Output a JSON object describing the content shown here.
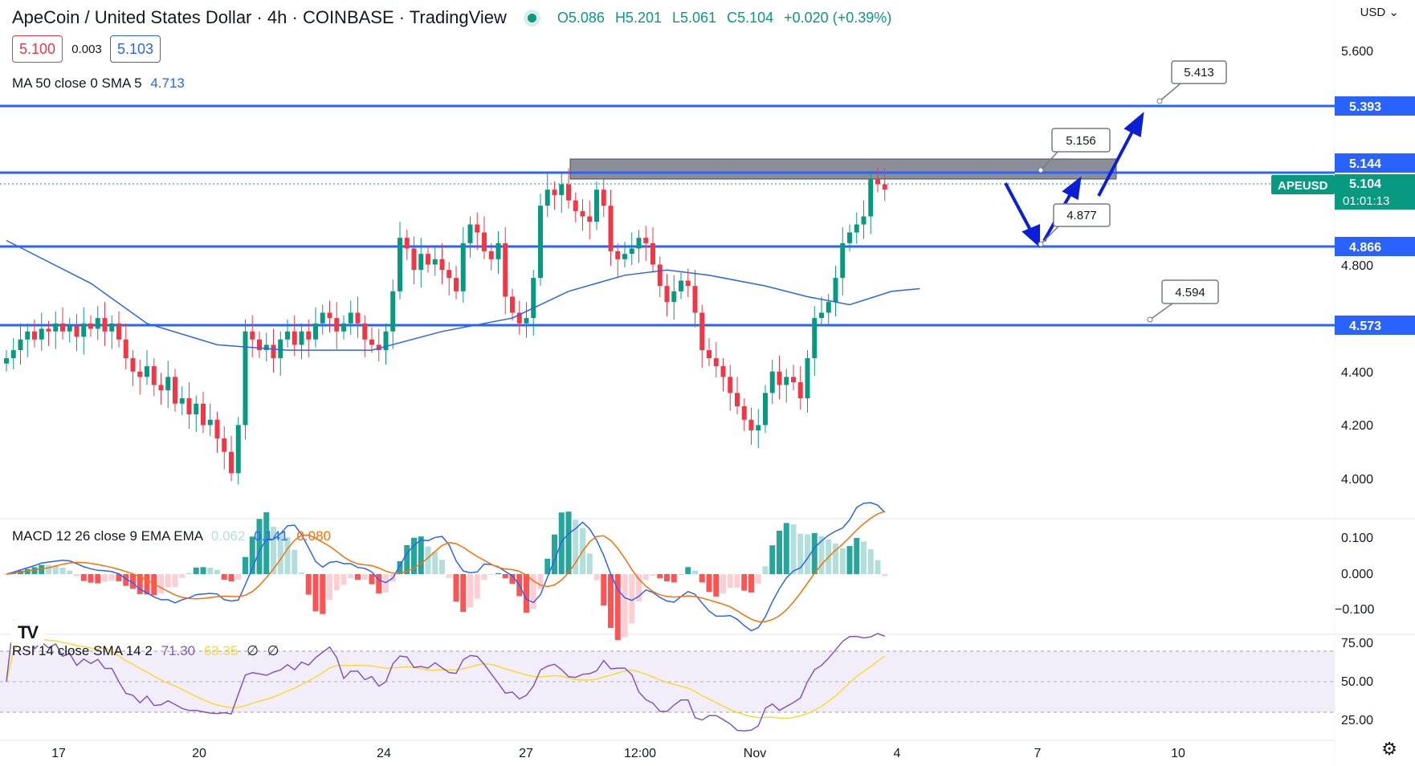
{
  "header": {
    "title": "ApeCoin / United States Dollar · 4h · COINBASE · TradingView",
    "ohlc": {
      "open": "O5.086",
      "high": "H5.201",
      "low": "L5.061",
      "close": "C5.104",
      "change": "+0.020 (+0.39%)"
    }
  },
  "trade": {
    "sell": "5.100",
    "spread": "0.003",
    "buy": "5.103"
  },
  "indicators": {
    "ma": {
      "label": "MA 50 close 0 SMA 5",
      "value": "4.713"
    },
    "macd": {
      "label": "MACD 12 26 close 9 EMA EMA",
      "hist": "0.062",
      "macd": "0.141",
      "signal": "0.080"
    },
    "rsi": {
      "label": "RSI 14 close SMA 14 2",
      "rsi": "71.30",
      "sma": "63.35",
      "extra1": "∅",
      "extra2": "∅"
    }
  },
  "currency": "USD",
  "time_axis": [
    "17",
    "20",
    "24",
    "27",
    "12:00",
    "Nov",
    "4",
    "7",
    "10"
  ],
  "price_axis": [
    "5.600",
    "4.800",
    "4.400",
    "4.200",
    "4.000"
  ],
  "macd_axis": [
    "0.100",
    "0.000",
    "−0.100"
  ],
  "rsi_axis": [
    "75.00",
    "50.00",
    "25.00"
  ],
  "price_badges": [
    {
      "text": "5.393",
      "value": 5.393,
      "color": "#2962ff"
    },
    {
      "text": "5.144",
      "value": 5.144,
      "color": "#2962ff"
    },
    {
      "text": "4.866",
      "value": 4.866,
      "color": "#2962ff"
    },
    {
      "text": "4.573",
      "value": 4.573,
      "color": "#2962ff"
    }
  ],
  "symbol_badge": {
    "symbol": "APEUSD",
    "price": "5.104",
    "countdown": "01:01:13",
    "color": "#089981"
  },
  "annotations": [
    {
      "text": "5.413"
    },
    {
      "text": "5.156"
    },
    {
      "text": "4.877"
    },
    {
      "text": "4.594"
    }
  ],
  "colors": {
    "up": "#089981",
    "down": "#f23645",
    "levels": "#2962ff",
    "ma": "#2962ff",
    "signal": "#ff6d00",
    "rsi": "#7e57c2",
    "rsi_sma": "#fdd835",
    "arrows": "#0d1fd6"
  },
  "chart_data": {
    "type": "candlestick",
    "symbol": "APEUSD",
    "timeframe": "4h",
    "horizontal_levels": [
      5.393,
      5.144,
      4.866,
      4.573
    ],
    "resistance_zone": [
      5.11,
      5.18
    ],
    "projection_points": [
      5.156,
      4.877,
      5.413,
      4.594
    ],
    "close_series": [
      4.45,
      4.48,
      4.52,
      4.55,
      4.52,
      4.56,
      4.55,
      4.58,
      4.55,
      4.57,
      4.53,
      4.58,
      4.56,
      4.6,
      4.55,
      4.58,
      4.52,
      4.45,
      4.4,
      4.38,
      4.42,
      4.35,
      4.33,
      4.38,
      4.28,
      4.3,
      4.24,
      4.28,
      4.2,
      4.22,
      4.15,
      4.1,
      4.02,
      4.2,
      4.55,
      4.52,
      4.48,
      4.5,
      4.45,
      4.52,
      4.55,
      4.5,
      4.55,
      4.52,
      4.58,
      4.62,
      4.6,
      4.55,
      4.58,
      4.62,
      4.58,
      4.52,
      4.5,
      4.48,
      4.55,
      4.7,
      4.9,
      4.86,
      4.78,
      4.84,
      4.8,
      4.82,
      4.78,
      4.75,
      4.7,
      4.88,
      4.95,
      4.92,
      4.85,
      4.82,
      4.88,
      4.68,
      4.62,
      4.58,
      4.6,
      4.75,
      5.02,
      5.08,
      5.06,
      5.1,
      5.04,
      5.0,
      4.98,
      4.96,
      5.08,
      5.02,
      4.85,
      4.82,
      4.84,
      4.86,
      4.9,
      4.88,
      4.8,
      4.72,
      4.66,
      4.7,
      4.74,
      4.72,
      4.62,
      4.48,
      4.45,
      4.42,
      4.38,
      4.32,
      4.27,
      4.22,
      4.18,
      4.2,
      4.32,
      4.4,
      4.35,
      4.38,
      4.36,
      4.3,
      4.45,
      4.6,
      4.62,
      4.66,
      4.75,
      4.88,
      4.92,
      4.95,
      4.98,
      5.12,
      5.1,
      5.08
    ],
    "ma50": {
      "start": 4.89,
      "points": [
        [
          0,
          4.89
        ],
        [
          12,
          4.73
        ],
        [
          20,
          4.58
        ],
        [
          30,
          4.5
        ],
        [
          40,
          4.48
        ],
        [
          52,
          4.48
        ],
        [
          62,
          4.55
        ],
        [
          72,
          4.6
        ],
        [
          80,
          4.7
        ],
        [
          88,
          4.76
        ],
        [
          94,
          4.78
        ],
        [
          100,
          4.76
        ],
        [
          108,
          4.72
        ],
        [
          114,
          4.68
        ],
        [
          120,
          4.65
        ],
        [
          126,
          4.7
        ],
        [
          130,
          4.71
        ]
      ]
    },
    "macd": {
      "range": [
        -0.15,
        0.16
      ]
    },
    "rsi": {
      "range": [
        0,
        100
      ],
      "bands": [
        70,
        30
      ]
    }
  }
}
